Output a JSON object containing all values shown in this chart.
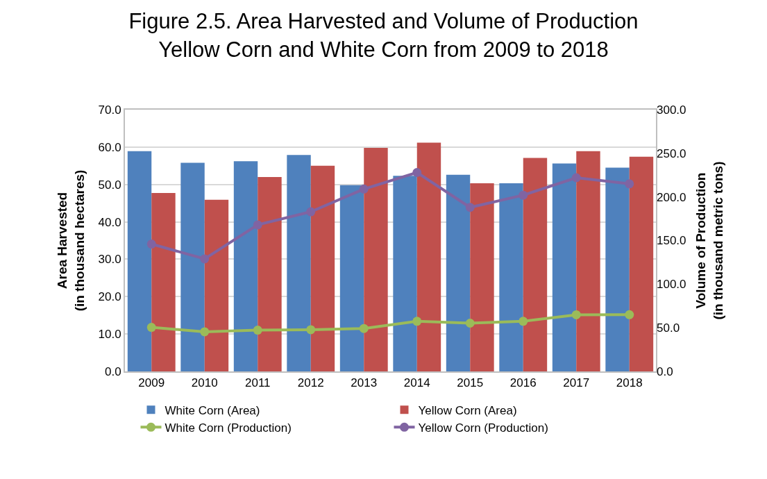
{
  "chart_data": {
    "type": "bar",
    "title": "Figure 2.5. Area Harvested and Volume of Production\nYellow Corn and White Corn from 2009 to 2018",
    "ylabel": "Area Harvested\n(in thousand hectares)",
    "y2label": "Volume of Production\n(in thousand metric tons)",
    "categories": [
      "2009",
      "2010",
      "2011",
      "2012",
      "2013",
      "2014",
      "2015",
      "2016",
      "2017",
      "2018"
    ],
    "series": [
      {
        "name": "White Corn (Area)",
        "color": "#4f81bd",
        "values": [
          58.9,
          55.8,
          56.2,
          57.9,
          49.8,
          52.3,
          52.6,
          50.3,
          55.6,
          54.5
        ]
      },
      {
        "name": "Yellow Corn (Area)",
        "color": "#c0504d",
        "values": [
          47.7,
          45.9,
          52.0,
          55.0,
          59.8,
          61.2,
          50.3,
          57.1,
          58.9,
          57.4
        ]
      },
      {
        "name": "White Corn (Production)",
        "type": "line",
        "axis": "y2",
        "marker": "circle",
        "color": "#9bbb59",
        "values": [
          50.5,
          45.4,
          47.3,
          47.8,
          49.2,
          57.4,
          55.3,
          57.4,
          64.9,
          65.0
        ]
      },
      {
        "name": "Yellow Corn (Production)",
        "type": "line",
        "axis": "y2",
        "marker": "circle",
        "color": "#8064a2",
        "values": [
          146,
          129,
          168,
          183,
          209,
          228,
          188,
          202,
          222,
          215
        ]
      }
    ],
    "ylim": [
      0,
      70
    ],
    "yticks": [
      {
        "value": 0,
        "label": "0.0"
      },
      {
        "value": 10,
        "label": "10.0"
      },
      {
        "value": 20,
        "label": "20.0"
      },
      {
        "value": 30,
        "label": "30.0"
      },
      {
        "value": 40,
        "label": "40.0"
      },
      {
        "value": 50,
        "label": "50.0"
      },
      {
        "value": 60,
        "label": "60.0"
      },
      {
        "value": 70,
        "label": "70.0"
      }
    ],
    "y2lim": [
      0,
      300
    ],
    "y2ticks": [
      {
        "value": 0,
        "label": "0.0"
      },
      {
        "value": 50,
        "label": "50.0"
      },
      {
        "value": 100,
        "label": "100.0"
      },
      {
        "value": 150,
        "label": "150.0"
      },
      {
        "value": 200,
        "label": "200.0"
      },
      {
        "value": 250,
        "label": "250.0"
      },
      {
        "value": 300,
        "label": "300.0"
      }
    ],
    "grid": "y",
    "legend": "bottom"
  }
}
